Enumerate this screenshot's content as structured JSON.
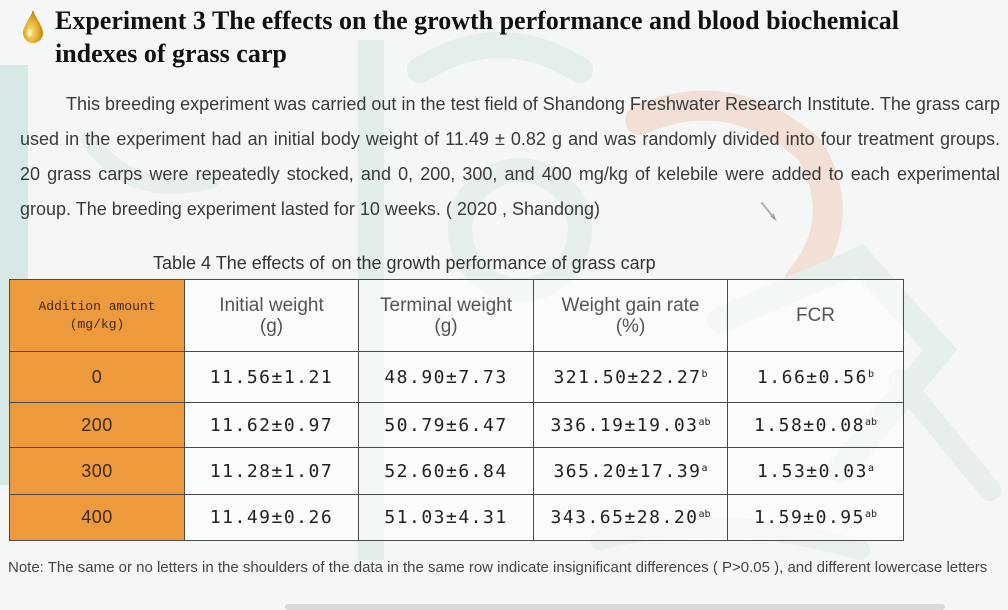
{
  "heading": {
    "title": "Experiment 3 The effects on the growth performance and blood biochemical  indexes of grass carp",
    "icon": "oil-drop-icon"
  },
  "paragraph": "This breeding experiment was carried out in the test field of Shandong Freshwater Research Institute. The grass carp used in the experiment had an initial body weight of 11.49 ± 0.82 g and was randomly divided into four treatment groups. 20 grass carps were repeatedly stocked, and 0, 200, 300, and 400 mg/kg of kelebile were added to each experimental group. The breeding experiment lasted for 10 weeks. ( 2020 , Shandong)",
  "table": {
    "caption_part1": "Table 4  The effects of",
    "caption_part2": "on the growth performance of grass carp",
    "headers": {
      "addition": "Addition amount",
      "addition_unit": "(mg/kg)",
      "initial": "Initial weight",
      "initial_unit": "(g)",
      "terminal": "Terminal weight",
      "terminal_unit": "(g)",
      "gain": "Weight gain rate",
      "gain_unit": "(%)",
      "fcr": "FCR"
    },
    "rows": [
      {
        "dose": "0",
        "initial": "11.56±1.21",
        "terminal": "48.90±7.73",
        "gain": "321.50±22.27",
        "gain_sup": "b",
        "fcr": "1.66±0.56",
        "fcr_sup": "b"
      },
      {
        "dose": "200",
        "initial": "11.62±0.97",
        "terminal": "50.79±6.47",
        "gain": "336.19±19.03",
        "gain_sup": "ab",
        "fcr": "1.58±0.08",
        "fcr_sup": "ab"
      },
      {
        "dose": "300",
        "initial": "11.28±1.07",
        "terminal": "52.60±6.84",
        "gain": "365.20±17.39",
        "gain_sup": "a",
        "fcr": "1.53±0.03",
        "fcr_sup": "a"
      },
      {
        "dose": "400",
        "initial": "11.49±0.26",
        "terminal": "51.03±4.31",
        "gain": "343.65±28.20",
        "gain_sup": "ab",
        "fcr": "1.59±0.95",
        "fcr_sup": "ab"
      }
    ]
  },
  "note": "Note: The same or no letters in the shoulders of the data in the same row indicate insignificant differences ( P>0.05 ), and different lowercase letters",
  "colors": {
    "accent_orange": "#ec9a3c",
    "drop_gold": "#d9a326",
    "title_text": "#111111",
    "body_text": "#3a3a3a"
  }
}
